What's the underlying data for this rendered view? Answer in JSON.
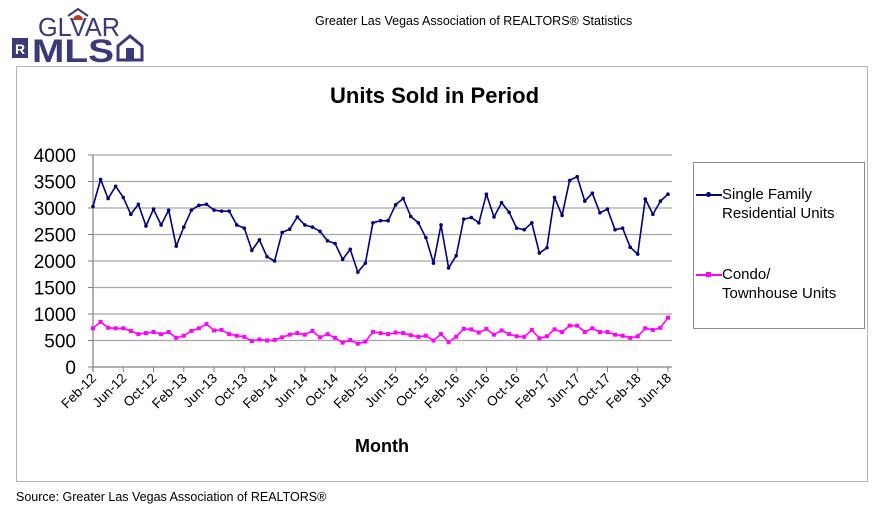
{
  "header": {
    "logo_text_top": "GLVAR",
    "logo_text_bottom": "MLS",
    "logo_badge": "R",
    "title": "Greater Las Vegas Association of REALTORS® Statistics"
  },
  "footer": {
    "source": "Source: Greater Las Vegas Association of REALTORS®"
  },
  "colors": {
    "single_family": "#000080",
    "condo": "#ff00ff",
    "gridline": "#a6a6a6",
    "logo": "#3a3a7a"
  },
  "chart_data": {
    "type": "line",
    "title": "Units Sold in Period",
    "xlabel": "Month",
    "ylabel": "",
    "ylim": [
      0,
      4000
    ],
    "yticks": [
      0,
      500,
      1000,
      1500,
      2000,
      2500,
      3000,
      3500,
      4000
    ],
    "grid": true,
    "legend_position": "right",
    "x": [
      "Feb-12",
      "Mar-12",
      "Apr-12",
      "May-12",
      "Jun-12",
      "Jul-12",
      "Aug-12",
      "Sep-12",
      "Oct-12",
      "Nov-12",
      "Dec-12",
      "Jan-13",
      "Feb-13",
      "Mar-13",
      "Apr-13",
      "May-13",
      "Jun-13",
      "Jul-13",
      "Aug-13",
      "Sep-13",
      "Oct-13",
      "Nov-13",
      "Dec-13",
      "Jan-14",
      "Feb-14",
      "Mar-14",
      "Apr-14",
      "May-14",
      "Jun-14",
      "Jul-14",
      "Aug-14",
      "Sep-14",
      "Oct-14",
      "Nov-14",
      "Dec-14",
      "Jan-15",
      "Feb-15",
      "Mar-15",
      "Apr-15",
      "May-15",
      "Jun-15",
      "Jul-15",
      "Aug-15",
      "Sep-15",
      "Oct-15",
      "Nov-15",
      "Dec-15",
      "Jan-16",
      "Feb-16",
      "Mar-16",
      "Apr-16",
      "May-16",
      "Jun-16",
      "Jul-16",
      "Aug-16",
      "Sep-16",
      "Oct-16",
      "Nov-16",
      "Dec-16",
      "Jan-17",
      "Feb-17",
      "Mar-17",
      "Apr-17",
      "May-17",
      "Jun-17",
      "Jul-17",
      "Aug-17",
      "Sep-17",
      "Oct-17",
      "Nov-17",
      "Dec-17",
      "Jan-18",
      "Feb-18",
      "Mar-18",
      "Apr-18",
      "May-18",
      "Jun-18"
    ],
    "xtick_labels": [
      "Feb-12",
      "Jun-12",
      "Oct-12",
      "Feb-13",
      "Jun-13",
      "Oct-13",
      "Feb-14",
      "Jun-14",
      "Oct-14",
      "Feb-15",
      "Jun-15",
      "Oct-15",
      "Feb-16",
      "Jun-16",
      "Oct-16",
      "Feb-17",
      "Jun-17",
      "Oct-17",
      "Feb-18",
      "Jun-18"
    ],
    "series": [
      {
        "name": "Single Family Residential Units",
        "legend_lines": [
          "Single Family",
          "Residential Units"
        ],
        "values": [
          3030,
          3540,
          3180,
          3410,
          3200,
          2880,
          3070,
          2660,
          2980,
          2680,
          2960,
          2280,
          2640,
          2960,
          3050,
          3070,
          2960,
          2940,
          2940,
          2680,
          2620,
          2200,
          2400,
          2080,
          2000,
          2540,
          2600,
          2830,
          2680,
          2640,
          2560,
          2380,
          2330,
          2030,
          2220,
          1790,
          1960,
          2720,
          2760,
          2760,
          3060,
          3180,
          2840,
          2720,
          2440,
          1960,
          2680,
          1870,
          2100,
          2790,
          2820,
          2720,
          3260,
          2830,
          3100,
          2920,
          2620,
          2590,
          2720,
          2150,
          2250,
          3200,
          2860,
          3520,
          3590,
          3130,
          3280,
          2910,
          2980,
          2590,
          2620,
          2260,
          2130,
          3170,
          2880,
          3130,
          3260
        ]
      },
      {
        "name": "Condo/ Townhouse Units",
        "legend_lines": [
          "Condo/",
          "Townhouse Units"
        ],
        "values": [
          730,
          850,
          740,
          730,
          730,
          680,
          620,
          640,
          660,
          620,
          660,
          550,
          590,
          680,
          730,
          810,
          690,
          700,
          620,
          590,
          570,
          490,
          520,
          500,
          510,
          560,
          610,
          640,
          610,
          680,
          560,
          620,
          550,
          460,
          510,
          440,
          480,
          660,
          640,
          620,
          650,
          640,
          600,
          570,
          590,
          500,
          620,
          470,
          570,
          720,
          710,
          650,
          720,
          610,
          690,
          620,
          580,
          570,
          700,
          540,
          580,
          710,
          660,
          780,
          780,
          660,
          730,
          660,
          660,
          610,
          590,
          550,
          580,
          730,
          700,
          740,
          930
        ]
      }
    ]
  }
}
